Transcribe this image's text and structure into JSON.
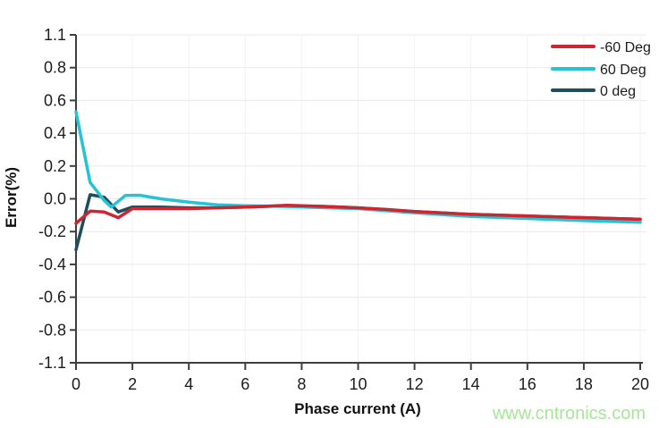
{
  "watermark": {
    "text": "www.cntronics.com",
    "color": "#a8e59b"
  },
  "chart_data": {
    "type": "line",
    "title": "",
    "xlabel": "Phase current (A)",
    "ylabel": "Error(%)",
    "xlim": [
      0,
      20
    ],
    "ylim": [
      -1.1,
      1.1
    ],
    "x_ticks": [
      0,
      2,
      4,
      6,
      8,
      10,
      12,
      14,
      16,
      18,
      20
    ],
    "y_tick_labels": [
      "1.1",
      "0.8",
      "0.6",
      "0.4",
      "0.2",
      "0.0",
      "-0.2",
      "-0.4",
      "-0.6",
      "-0.8",
      "-1.1"
    ],
    "grid": true,
    "legend_position": "top-right",
    "axis_color": "#3f3f3f",
    "grid_color": "#e8eaeb",
    "minor_grid_color": "#f0f2f2",
    "tick_label_color": "#1c1c1c",
    "series": [
      {
        "name": "-60 Deg",
        "color": "#cf2530",
        "x": [
          0,
          0.5,
          1,
          1.5,
          2,
          3,
          4,
          5,
          6,
          7.5,
          9,
          10,
          11,
          12,
          14,
          16,
          18,
          20
        ],
        "y": [
          -0.15,
          -0.075,
          -0.08,
          -0.115,
          -0.06,
          -0.06,
          -0.06,
          -0.055,
          -0.05,
          -0.04,
          -0.048,
          -0.055,
          -0.065,
          -0.078,
          -0.095,
          -0.105,
          -0.115,
          -0.125
        ]
      },
      {
        "name": "60 Deg",
        "color": "#25c3d3",
        "x": [
          0,
          0.5,
          1,
          1.25,
          1.75,
          2.25,
          3,
          4,
          5,
          6,
          7.5,
          9,
          10,
          12,
          14,
          16,
          18,
          20
        ],
        "y": [
          0.53,
          0.1,
          -0.01,
          -0.05,
          0.02,
          0.022,
          0.0,
          -0.02,
          -0.037,
          -0.042,
          -0.047,
          -0.055,
          -0.06,
          -0.085,
          -0.108,
          -0.12,
          -0.133,
          -0.143
        ]
      },
      {
        "name": "0 deg",
        "color": "#1d4e5c",
        "x": [
          0,
          0.5,
          1,
          1.5,
          2,
          3,
          4,
          5,
          6,
          7.5,
          9,
          10,
          12,
          14,
          16,
          18,
          20
        ],
        "y": [
          -0.31,
          0.025,
          0.01,
          -0.08,
          -0.05,
          -0.05,
          -0.055,
          -0.055,
          -0.05,
          -0.042,
          -0.048,
          -0.055,
          -0.078,
          -0.095,
          -0.105,
          -0.115,
          -0.125
        ]
      }
    ]
  }
}
